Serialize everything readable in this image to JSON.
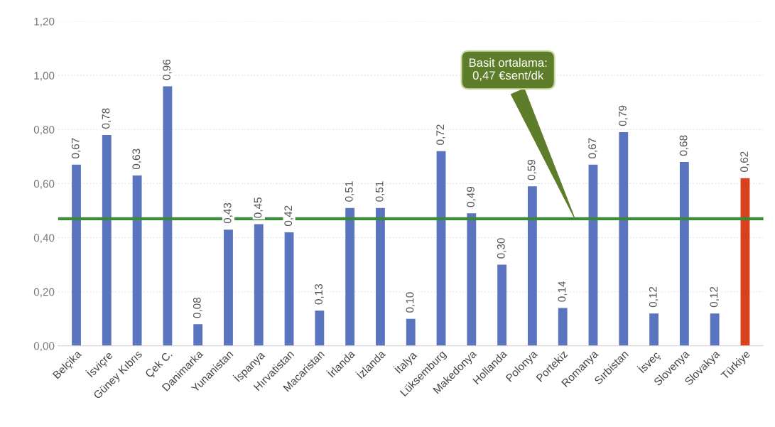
{
  "chart_data": {
    "type": "bar",
    "categories": [
      "Belçika",
      "İsviçre",
      "Güney Kıbrıs",
      "Çek C.",
      "Danimarka",
      "Yunanistan",
      "İspanya",
      "Hırvatistan",
      "Macaristan",
      "İrlanda",
      "İzlanda",
      "İtalya",
      "Lüksemburg",
      "Makedonya",
      "Hollanda",
      "Polonya",
      "Portekiz",
      "Romanya",
      "Sırbistan",
      "İsveç",
      "Slovenya",
      "Slovakya",
      "Türkiye"
    ],
    "values": [
      0.67,
      0.78,
      0.63,
      0.96,
      0.08,
      0.43,
      0.45,
      0.42,
      0.13,
      0.51,
      0.51,
      0.1,
      0.72,
      0.49,
      0.3,
      0.59,
      0.14,
      0.67,
      0.79,
      0.12,
      0.68,
      0.12,
      0.62
    ],
    "colors": [
      "#5b74c0",
      "#5b74c0",
      "#5b74c0",
      "#5b74c0",
      "#5b74c0",
      "#5b74c0",
      "#5b74c0",
      "#5b74c0",
      "#5b74c0",
      "#5b74c0",
      "#5b74c0",
      "#5b74c0",
      "#5b74c0",
      "#5b74c0",
      "#5b74c0",
      "#5b74c0",
      "#5b74c0",
      "#5b74c0",
      "#5b74c0",
      "#5b74c0",
      "#5b74c0",
      "#5b74c0",
      "#d9411e"
    ],
    "value_labels": [
      "0,67",
      "0,78",
      "0,63",
      "0,96",
      "0,08",
      "0,43",
      "0,45",
      "0,42",
      "0,13",
      "0,51",
      "0,51",
      "0,10",
      "0,72",
      "0,49",
      "0,30",
      "0,59",
      "0,14",
      "0,67",
      "0,79",
      "0,12",
      "0,68",
      "0,12",
      "0,62"
    ],
    "ylim": [
      0,
      1.2
    ],
    "yticks": [
      {
        "value": 0,
        "label": "0,00"
      },
      {
        "value": 0.2,
        "label": "0,20"
      },
      {
        "value": 0.4,
        "label": "0,40"
      },
      {
        "value": 0.6,
        "label": "0,60"
      },
      {
        "value": 0.8,
        "label": "0,80"
      },
      {
        "value": 1.0,
        "label": "1,00"
      },
      {
        "value": 1.2,
        "label": "1,20"
      }
    ],
    "grid": "y",
    "ref_lines": [
      {
        "axis": "y",
        "value": 0.47,
        "label": "Basit ortalama:\n0,47 €sent/dk",
        "color": "#3a8a3a"
      }
    ]
  }
}
